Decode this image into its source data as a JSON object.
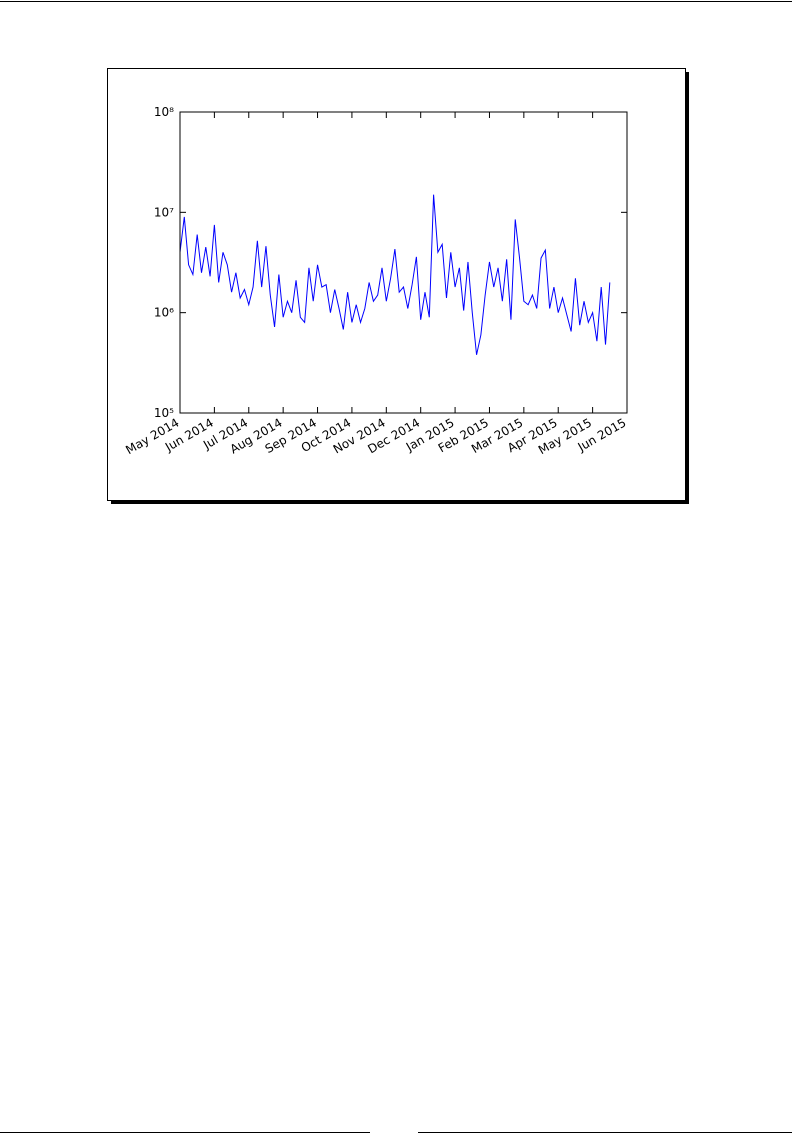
{
  "chart_data": {
    "type": "line",
    "yscale": "log",
    "color": "#0000ff",
    "values": [
      4000000,
      9000000,
      3000000,
      2400000,
      6000000,
      2500000,
      4500000,
      2300000,
      7500000,
      2000000,
      4000000,
      3000000,
      1600000,
      2500000,
      1400000,
      1700000,
      1200000,
      1800000,
      5200000,
      1800000,
      4600000,
      1500000,
      720000,
      2400000,
      900000,
      1300000,
      1000000,
      2100000,
      900000,
      800000,
      2800000,
      1300000,
      3000000,
      1800000,
      1900000,
      1000000,
      1700000,
      1100000,
      680000,
      1600000,
      800000,
      1200000,
      800000,
      1100000,
      2000000,
      1300000,
      1500000,
      2800000,
      1300000,
      2200000,
      4300000,
      1600000,
      1800000,
      1100000,
      1900000,
      3600000,
      850000,
      1600000,
      900000,
      15000000,
      4000000,
      4800000,
      1400000,
      4000000,
      1800000,
      2800000,
      1050000,
      3200000,
      1000000,
      380000,
      600000,
      1500000,
      3200000,
      1800000,
      2800000,
      1300000,
      3400000,
      850000,
      8500000,
      3500000,
      1300000,
      1200000,
      1500000,
      1100000,
      3500000,
      4200000,
      1100000,
      1800000,
      1000000,
      1400000,
      950000,
      650000,
      2200000,
      750000,
      1300000,
      800000,
      1000000,
      520000,
      1800000,
      480000,
      2000000
    ],
    "xlim": [
      0,
      104
    ],
    "xticks": [
      {
        "value": 0,
        "label": "May 2014"
      },
      {
        "value": 8,
        "label": "Jun 2014"
      },
      {
        "value": 16,
        "label": "Jul 2014"
      },
      {
        "value": 24,
        "label": "Aug 2014"
      },
      {
        "value": 32,
        "label": "Sep 2014"
      },
      {
        "value": 40,
        "label": "Oct 2014"
      },
      {
        "value": 48,
        "label": "Nov 2014"
      },
      {
        "value": 56,
        "label": "Dec 2014"
      },
      {
        "value": 64,
        "label": "Jan 2015"
      },
      {
        "value": 72,
        "label": "Feb 2015"
      },
      {
        "value": 80,
        "label": "Mar 2015"
      },
      {
        "value": 88,
        "label": "Apr 2015"
      },
      {
        "value": 96,
        "label": "May 2015"
      },
      {
        "value": 104,
        "label": "Jun 2015"
      }
    ],
    "ylim": [
      100000,
      100000000
    ],
    "yticks": [
      {
        "value": 100000,
        "label": "10⁵"
      },
      {
        "value": 1000000,
        "label": "10⁶"
      },
      {
        "value": 10000000,
        "label": "10⁷"
      },
      {
        "value": 100000000,
        "label": "10⁸"
      }
    ]
  }
}
